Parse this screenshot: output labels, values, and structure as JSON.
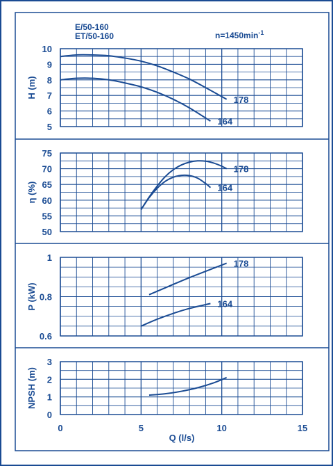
{
  "header": {
    "model_line1": "E/50-160",
    "model_line2": "ET/50-160",
    "speed_label": "n=1450min",
    "speed_exponent": "-1"
  },
  "colors": {
    "ink": "#1a4b93",
    "background": "#ffffff",
    "border": "#1a4b93"
  },
  "x_axis": {
    "label": "Q (l/s)",
    "ticks": [
      0,
      5,
      10,
      15
    ],
    "range": [
      0,
      15
    ],
    "minor_step": 1
  },
  "chart_data": [
    {
      "type": "line",
      "id": "head",
      "ylabel": "H (m)",
      "ylim": [
        5,
        10
      ],
      "yticks": [
        5,
        6,
        7,
        8,
        9,
        10
      ],
      "ytick_labels": [
        "5",
        "6",
        "7",
        "8",
        "9",
        "10"
      ],
      "xlim": [
        0,
        15
      ],
      "grid": true,
      "series": [
        {
          "name": "178",
          "x": [
            0,
            1,
            2,
            3,
            4,
            5,
            6,
            7,
            8,
            9,
            10.3
          ],
          "y": [
            9.5,
            9.6,
            9.6,
            9.55,
            9.4,
            9.2,
            8.9,
            8.5,
            8.05,
            7.5,
            6.75
          ]
        },
        {
          "name": "164",
          "x": [
            0,
            1,
            2,
            3,
            4,
            5,
            6,
            7,
            8,
            9.3
          ],
          "y": [
            8.0,
            8.1,
            8.1,
            8.0,
            7.8,
            7.55,
            7.2,
            6.75,
            6.2,
            5.35
          ]
        }
      ]
    },
    {
      "type": "line",
      "id": "efficiency",
      "ylabel": "η (%)",
      "ylim": [
        50,
        75
      ],
      "yticks": [
        50,
        55,
        60,
        65,
        70,
        75
      ],
      "ytick_labels": [
        "50",
        "55",
        "60",
        "65",
        "70",
        "75"
      ],
      "xlim": [
        0,
        15
      ],
      "grid": true,
      "series": [
        {
          "name": "178",
          "x": [
            5,
            5.5,
            6,
            6.5,
            7,
            7.5,
            8,
            8.5,
            9,
            9.5,
            10,
            10.3
          ],
          "y": [
            57,
            61,
            64.5,
            67.5,
            69.7,
            71.2,
            72.1,
            72.5,
            72.4,
            71.8,
            70.8,
            70
          ]
        },
        {
          "name": "164",
          "x": [
            5,
            5.5,
            6,
            6.5,
            7,
            7.5,
            8,
            8.5,
            9,
            9.3
          ],
          "y": [
            57,
            60.8,
            63.8,
            66,
            67.3,
            67.9,
            67.8,
            67,
            65.3,
            64
          ]
        }
      ]
    },
    {
      "type": "line",
      "id": "power",
      "ylabel": "P (kW)",
      "ylim": [
        0.6,
        1.0
      ],
      "yticks": [
        0.6,
        0.8,
        1.0
      ],
      "ytick_labels": [
        "0.6",
        "0.8",
        "1"
      ],
      "xlim": [
        0,
        15
      ],
      "grid": true,
      "series": [
        {
          "name": "178",
          "x": [
            5.5,
            6.5,
            7.5,
            8.5,
            9.5,
            10.3
          ],
          "y": [
            0.81,
            0.845,
            0.88,
            0.913,
            0.945,
            0.97
          ]
        },
        {
          "name": "164",
          "x": [
            5,
            6,
            7,
            8,
            9.3
          ],
          "y": [
            0.65,
            0.685,
            0.715,
            0.74,
            0.765
          ]
        }
      ]
    },
    {
      "type": "line",
      "id": "npsh",
      "ylabel": "NPSH (m)",
      "ylim": [
        0,
        3
      ],
      "yticks": [
        0,
        1,
        2,
        3
      ],
      "ytick_labels": [
        "0",
        "1",
        "2",
        "3"
      ],
      "xlim": [
        0,
        15
      ],
      "grid": true,
      "series": [
        {
          "name": "",
          "x": [
            5.5,
            6.5,
            7.5,
            8.5,
            9.5,
            10.3
          ],
          "y": [
            1.1,
            1.18,
            1.32,
            1.52,
            1.8,
            2.1
          ]
        }
      ]
    }
  ]
}
